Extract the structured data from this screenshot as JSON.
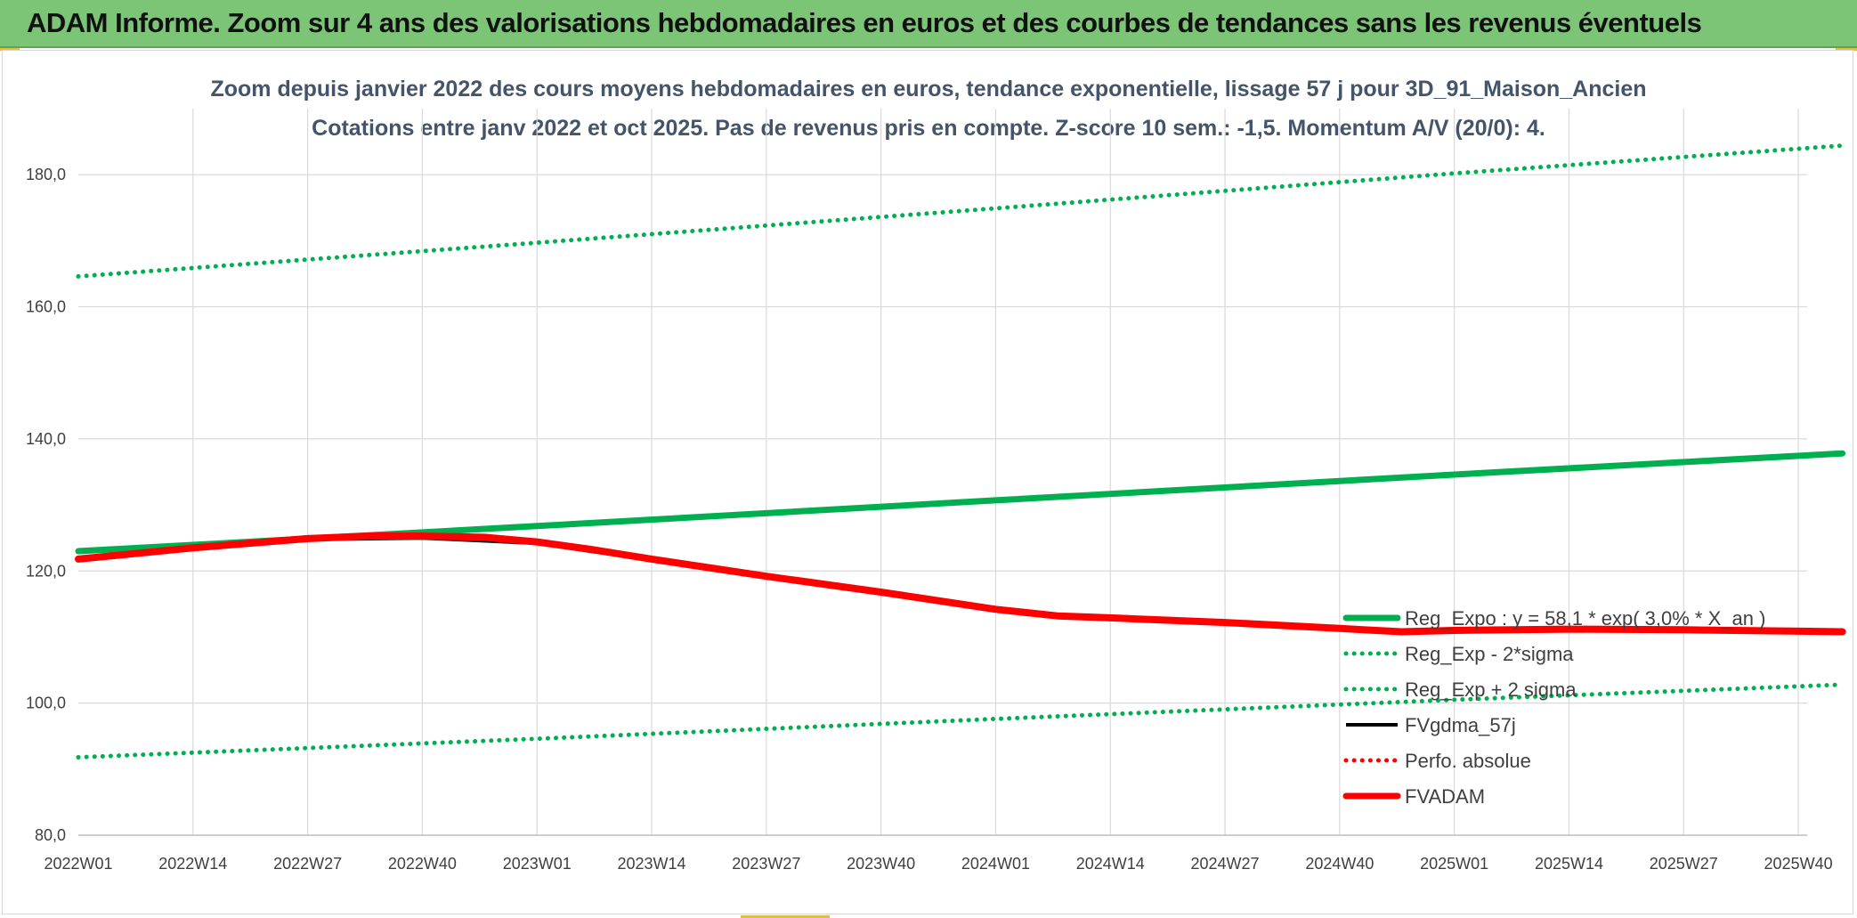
{
  "header": {
    "title": "ADAM Informe. Zoom sur 4 ans des valorisations hebdomadaires en euros et des courbes de tendances sans les revenus éventuels"
  },
  "colors": {
    "header_bg": "#7cc576",
    "green": "#00b050",
    "red": "#ff0000",
    "black": "#000000",
    "grid": "#d9d9d9"
  },
  "chart_data": {
    "type": "line",
    "title": "Zoom depuis janvier 2022 des cours moyens hebdomadaires en euros, tendance exponentielle, lissage 57 j pour 3D_91_Maison_Ancien",
    "subtitle": "Cotations entre janv 2022 et oct 2025. Pas de revenus pris en compte. Z-score 10 sem.: -1,5. Momentum A/V (20/0): 4.",
    "xlabel": "",
    "ylabel": "",
    "ylim": [
      80,
      190
    ],
    "yticks": [
      80,
      100,
      120,
      140,
      160,
      180
    ],
    "ytick_labels": [
      "80,0",
      "100,0",
      "120,0",
      "140,0",
      "160,0",
      "180,0"
    ],
    "grid": true,
    "legend_position": "bottom-right",
    "x_start_week_index": 0,
    "x_end_week_index": 196,
    "xtick_positions": [
      0,
      13,
      26,
      39,
      52,
      65,
      78,
      91,
      104,
      117,
      130,
      143,
      156,
      169,
      182,
      195
    ],
    "xtick_labels": [
      "2022W01",
      "2022W14",
      "2022W27",
      "2022W40",
      "2023W01",
      "2023W14",
      "2023W27",
      "2023W40",
      "2024W01",
      "2024W14",
      "2024W27",
      "2024W40",
      "2025W01",
      "2025W14",
      "2025W27",
      "2025W40"
    ],
    "series": [
      {
        "name": "Reg_Expo : y = 58,1 * exp( 3,0% * X_an )",
        "style": "solid-thick",
        "color": "#00b050",
        "x": [
          0,
          52,
          104,
          156,
          200
        ],
        "values": [
          123.0,
          126.8,
          130.7,
          134.6,
          137.8
        ]
      },
      {
        "name": "Reg_Exp - 2*sigma",
        "style": "dotted",
        "color": "#00b050",
        "x": [
          0,
          52,
          104,
          156,
          200
        ],
        "values": [
          164.6,
          169.7,
          174.9,
          180.2,
          184.4
        ]
      },
      {
        "name": "Reg_Exp + 2 sigma",
        "style": "dotted",
        "color": "#00b050",
        "x": [
          0,
          52,
          104,
          156,
          200
        ],
        "values": [
          91.8,
          94.6,
          97.6,
          100.5,
          102.8
        ]
      },
      {
        "name": "FVgdma_57j",
        "style": "solid",
        "color": "#000000",
        "x": [
          0,
          13,
          26,
          39,
          52,
          58,
          65,
          78,
          91,
          104,
          117,
          130,
          143,
          156,
          169,
          182,
          200
        ],
        "values": [
          121.8,
          123.4,
          124.8,
          125.0,
          124.2,
          123.0,
          121.7,
          119.1,
          116.7,
          114.0,
          112.8,
          112.1,
          111.2,
          110.9,
          111.1,
          111.1,
          110.8
        ]
      },
      {
        "name": "Perfo. absolue",
        "style": "dotted",
        "color": "#ff0000",
        "x": [],
        "values": []
      },
      {
        "name": "FVADAM",
        "style": "solid-thick",
        "color": "#ff0000",
        "x": [
          0,
          13,
          26,
          33,
          39,
          46,
          52,
          58,
          65,
          78,
          91,
          104,
          111,
          117,
          130,
          143,
          150,
          156,
          169,
          182,
          200
        ],
        "values": [
          121.8,
          123.5,
          124.9,
          125.3,
          125.3,
          125.1,
          124.4,
          123.3,
          121.8,
          119.2,
          116.8,
          114.2,
          113.2,
          112.9,
          112.2,
          111.3,
          110.8,
          111.0,
          111.2,
          111.1,
          110.8
        ]
      }
    ]
  }
}
